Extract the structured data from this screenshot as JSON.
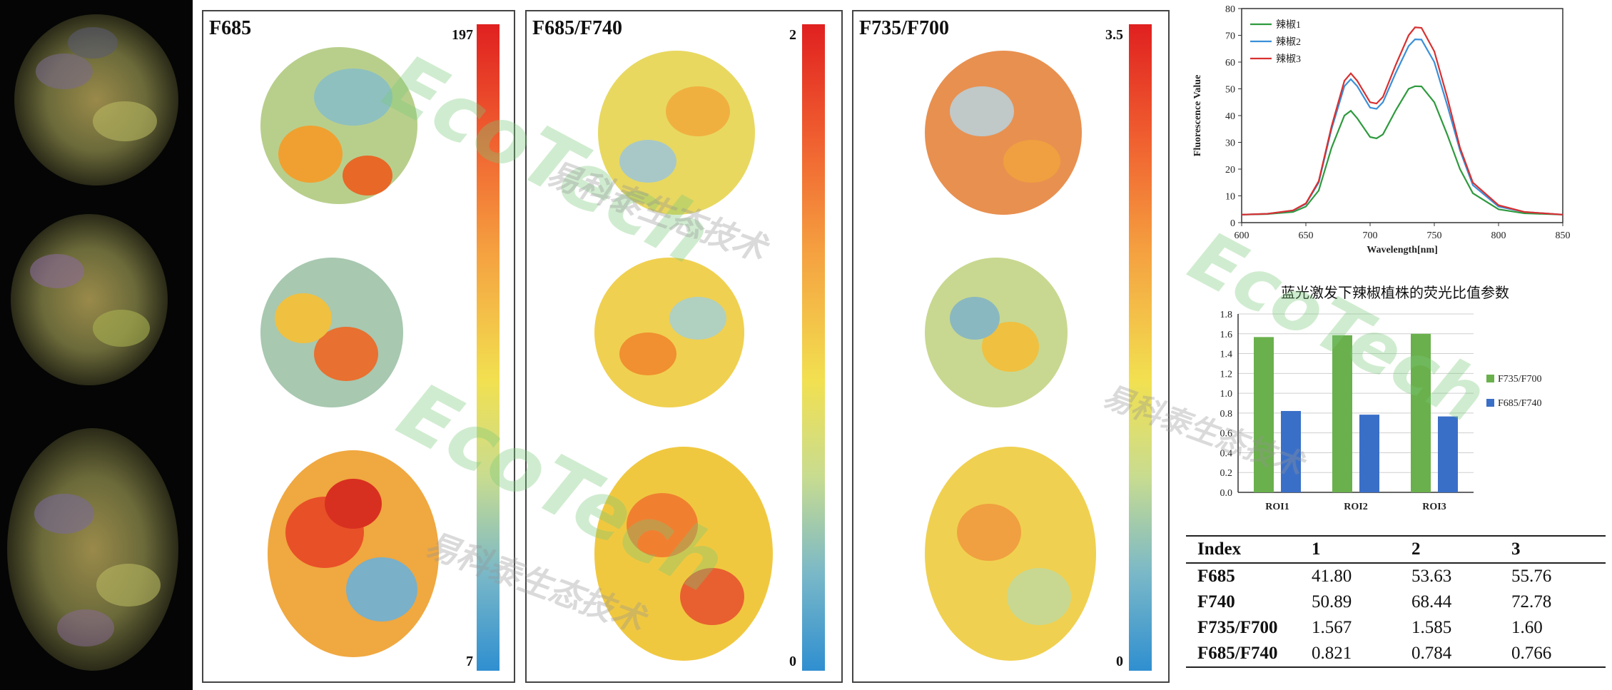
{
  "panels": [
    {
      "title": "F685",
      "cb_max": "197",
      "cb_min": "7"
    },
    {
      "title": "F685/F740",
      "cb_max": "2",
      "cb_min": "0"
    },
    {
      "title": "F735/F700",
      "cb_max": "3.5",
      "cb_min": "0"
    }
  ],
  "watermark": {
    "text": "EcoTech",
    "cn": "易科泰生态技术"
  },
  "chart_data": [
    {
      "type": "line",
      "xlabel": "Wavelength[nm]",
      "ylabel": "Fluorescence Value",
      "xlim": [
        600,
        850
      ],
      "ylim": [
        0,
        80
      ],
      "xticks": [
        "600",
        "650",
        "700",
        "750",
        "800",
        "850"
      ],
      "yticks": [
        "0",
        "10",
        "20",
        "30",
        "40",
        "50",
        "60",
        "70",
        "80"
      ],
      "legend_position": "top-left",
      "x": [
        600,
        620,
        640,
        650,
        660,
        670,
        680,
        685,
        690,
        700,
        705,
        710,
        720,
        730,
        735,
        740,
        750,
        760,
        770,
        780,
        800,
        820,
        850
      ],
      "series": [
        {
          "name": "辣椒1",
          "color": "#2e9a3e",
          "values": [
            3,
            3.2,
            4,
            6,
            12,
            28,
            40,
            41.8,
            39,
            32,
            31.5,
            33,
            42,
            50,
            51,
            50.9,
            45,
            33,
            20,
            11,
            5,
            3.5,
            3
          ]
        },
        {
          "name": "辣椒2",
          "color": "#3a8fd8",
          "values": [
            3,
            3.3,
            4.5,
            7,
            15,
            35,
            51,
            53.6,
            51,
            43,
            42.5,
            45,
            56,
            66,
            68.5,
            68.4,
            60,
            44,
            27,
            14,
            6,
            4,
            3
          ]
        },
        {
          "name": "辣椒3",
          "color": "#d83030",
          "values": [
            3,
            3.3,
            4.6,
            7.2,
            15.5,
            36,
            53,
            55.8,
            53,
            45,
            44.5,
            47,
            59,
            70,
            73,
            72.8,
            64,
            47,
            28,
            15,
            6.5,
            4,
            3
          ]
        }
      ]
    },
    {
      "type": "bar",
      "title": "蓝光激发下辣椒植株的荧光比值参数",
      "categories": [
        "ROI1",
        "ROI2",
        "ROI3"
      ],
      "ylim": [
        0,
        1.8
      ],
      "yticks": [
        "0.0",
        "0.2",
        "0.4",
        "0.6",
        "0.8",
        "1.0",
        "1.2",
        "1.4",
        "1.6",
        "1.8"
      ],
      "legend_position": "right",
      "series": [
        {
          "name": "F735/F700",
          "color": "#6ab04c",
          "values": [
            1.567,
            1.585,
            1.6
          ]
        },
        {
          "name": "F685/F740",
          "color": "#3a6fc8",
          "values": [
            0.821,
            0.784,
            0.766
          ]
        }
      ]
    },
    {
      "type": "table",
      "headers": [
        "Index",
        "1",
        "2",
        "3"
      ],
      "rows": [
        [
          "F685",
          "41.80",
          "53.63",
          "55.76"
        ],
        [
          "F740",
          "50.89",
          "68.44",
          "72.78"
        ],
        [
          "F735/F700",
          "1.567",
          "1.585",
          "1.60"
        ],
        [
          "F685/F740",
          "0.821",
          "0.784",
          "0.766"
        ]
      ]
    }
  ]
}
